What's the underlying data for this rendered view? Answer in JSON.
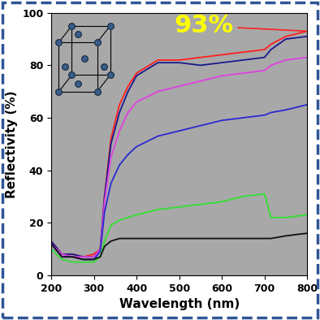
{
  "chart_data": {
    "type": "line",
    "x_label": "Wavelength (nm)",
    "y_label": "Reflectivity (%)",
    "annotations": [
      {
        "text": "93%"
      }
    ],
    "x": [
      200,
      225,
      250,
      275,
      300,
      315,
      325,
      340,
      360,
      380,
      400,
      450,
      500,
      550,
      600,
      650,
      700,
      715,
      750,
      800
    ],
    "series": [
      {
        "color": "#ff2020",
        "values": [
          13,
          8,
          8,
          7,
          8,
          10,
          30,
          52,
          65,
          72,
          77,
          82,
          82,
          83,
          84,
          85,
          86,
          88,
          91,
          93
        ]
      },
      {
        "color": "#1a1a8c",
        "values": [
          13,
          8,
          8,
          7,
          7,
          10,
          30,
          50,
          62,
          70,
          76,
          81,
          81,
          80,
          81,
          82,
          83,
          86,
          90,
          91
        ]
      },
      {
        "color": "#e040e0",
        "values": [
          12,
          8,
          7,
          7,
          7,
          10,
          28,
          45,
          55,
          62,
          66,
          70,
          72,
          74,
          76,
          77,
          78,
          80,
          82,
          83
        ]
      },
      {
        "color": "#2a2ad0",
        "values": [
          12,
          7,
          7,
          6,
          6,
          9,
          24,
          35,
          42,
          46,
          49,
          53,
          55,
          57,
          59,
          60,
          61,
          62,
          63,
          65
        ]
      },
      {
        "color": "#30e030",
        "values": [
          10,
          6,
          5,
          5,
          5,
          7,
          13,
          19,
          21,
          22,
          23,
          25,
          26,
          27,
          28,
          30,
          31,
          22,
          22,
          23
        ]
      },
      {
        "color": "#111111",
        "values": [
          12,
          7,
          7,
          6,
          6,
          7,
          11,
          13,
          14,
          14,
          14,
          14,
          14,
          14,
          14,
          14,
          14,
          14,
          15,
          16
        ]
      }
    ],
    "xlim": [
      200,
      800
    ],
    "xticks": [
      200,
      300,
      400,
      500,
      600,
      700,
      800
    ],
    "ylim": [
      0,
      100
    ],
    "yticks": [
      0,
      20,
      40,
      60,
      80,
      100
    ],
    "grid": false
  }
}
